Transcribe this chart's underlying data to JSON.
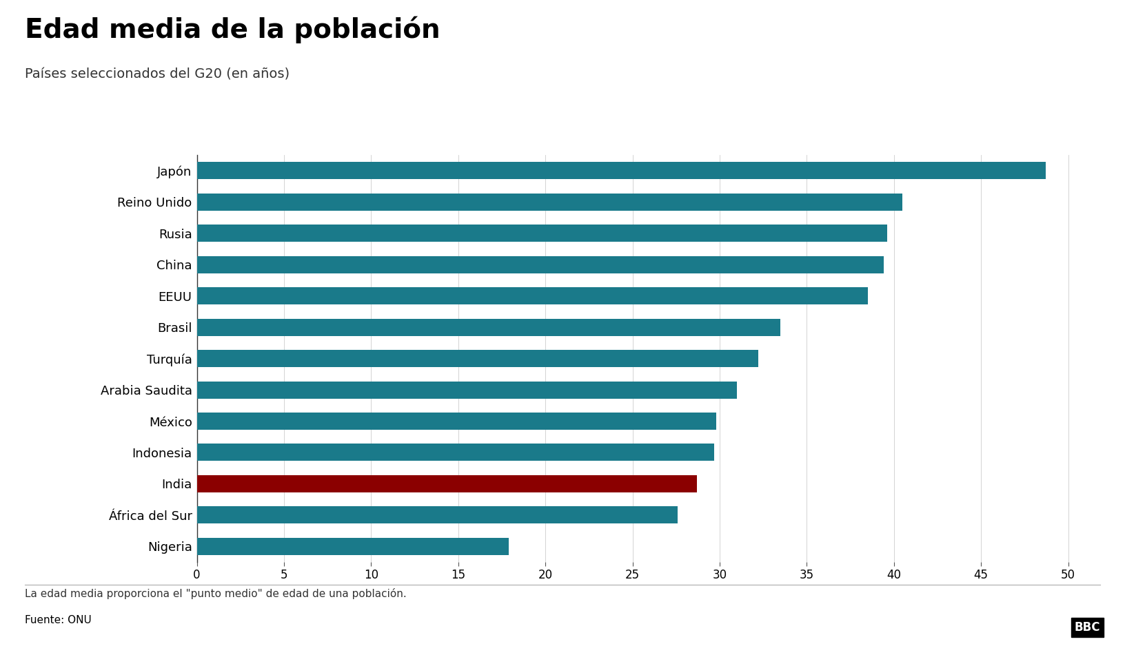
{
  "title": "Edad media de la población",
  "subtitle": "Países seleccionados del G20 (en años)",
  "footnote": "La edad media proporciona el \"punto medio\" de edad de una población.",
  "source": "Fuente: ONU",
  "bbc_logo": "BBC",
  "countries": [
    "Japón",
    "Reino Unido",
    "Rusia",
    "China",
    "EEUU",
    "Brasil",
    "Turquía",
    "Arabia Saudita",
    "México",
    "Indonesia",
    "India",
    "África del Sur",
    "Nigeria"
  ],
  "values": [
    48.7,
    40.5,
    39.6,
    39.4,
    38.5,
    33.5,
    32.2,
    31.0,
    29.8,
    29.7,
    28.7,
    27.6,
    17.9
  ],
  "bar_color_default": "#1a7a8a",
  "bar_color_highlight": "#8b0000",
  "highlight_country": "India",
  "xlim": [
    0,
    51
  ],
  "xticks": [
    0,
    5,
    10,
    15,
    20,
    25,
    30,
    35,
    40,
    45,
    50
  ],
  "background_color": "#ffffff",
  "title_fontsize": 28,
  "subtitle_fontsize": 14,
  "label_fontsize": 13,
  "tick_fontsize": 12,
  "footnote_fontsize": 11,
  "bar_height": 0.55
}
